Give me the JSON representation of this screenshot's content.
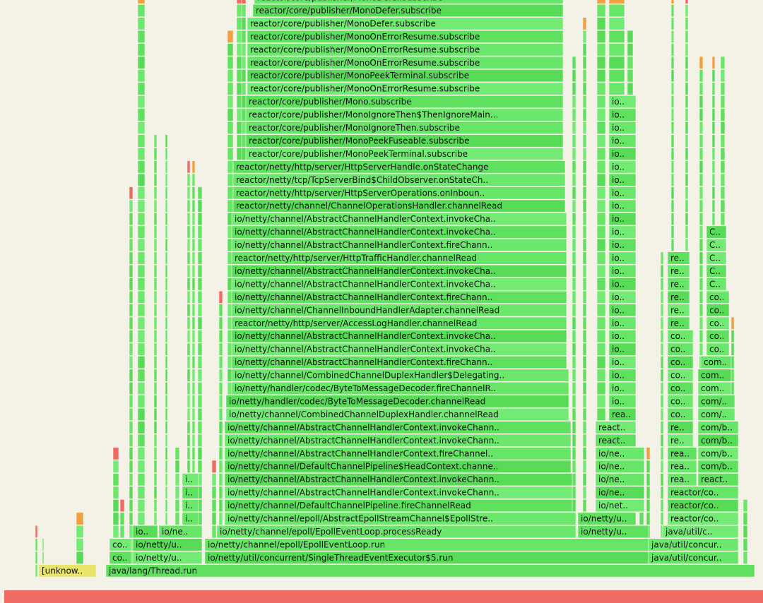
{
  "rows": [
    [
      "[unknow..",
      "java/lang/Thread.run"
    ],
    [
      "co..",
      "io/netty/u..",
      "io/netty/util/concurrent/SingleThreadEventExecutor$5.run",
      "java/util/concur.."
    ],
    [
      "co..",
      "io/netty/u..",
      "io/netty/channel/epoll/EpollEventLoop.run",
      "java/util/concur.."
    ],
    [
      "io..",
      "io/ne..",
      "io/netty/channel/epoll/EpollEventLoop.processReady",
      "io/netty/u..",
      "java/util/c.."
    ],
    [
      "i..",
      "io/netty/channel/epoll/AbstractEpollStreamChannel$EpollStre..",
      "io/netty/u..",
      "reactor/co.."
    ],
    [
      "i..",
      "io/netty/channel/DefaultChannelPipeline.fireChannelRead",
      "io/net..",
      "reactor/co.."
    ],
    [
      "i..",
      "io/netty/channel/AbstractChannelHandlerContext.invokeChann..",
      "io/ne..",
      "reactor/co.."
    ],
    [
      "i..",
      "io/netty/channel/AbstractChannelHandlerContext.invokeChann..",
      "io/ne..",
      "rea..",
      "react.."
    ],
    [
      "io/netty/channel/DefaultChannelPipeline$HeadContext.channe..",
      "io/ne..",
      "rea..",
      "com/b.."
    ],
    [
      "io/netty/channel/AbstractChannelHandlerContext.fireChannel..",
      "io/ne..",
      "rea..",
      "com/b.."
    ],
    [
      "io/netty/channel/AbstractChannelHandlerContext.invokeChann..",
      "react..",
      "re..",
      "com/b.."
    ],
    [
      "io/netty/channel/AbstractChannelHandlerContext.invokeChann..",
      "react..",
      "re..",
      "com/b.."
    ],
    [
      "io/netty/channel/CombinedChannelDuplexHandler.channelRead",
      "rea..",
      "co..",
      "com/.."
    ],
    [
      "io/netty/handler/codec/ByteToMessageDecoder.channelRead",
      "io..",
      "co..",
      "com/.."
    ],
    [
      "io/netty/handler/codec/ByteToMessageDecoder.fireChannelR..",
      "io..",
      "co..",
      "com.."
    ],
    [
      "io/netty/channel/CombinedChannelDuplexHandler$Delegating..",
      "io..",
      "co..",
      "com.."
    ],
    [
      "io/netty/channel/AbstractChannelHandlerContext.fireChann..",
      "io..",
      "co..",
      "com.."
    ],
    [
      "io/netty/channel/AbstractChannelHandlerContext.invokeCha..",
      "io..",
      "co..",
      "co.."
    ],
    [
      "io/netty/channel/AbstractChannelHandlerContext.invokeCha..",
      "io..",
      "co..",
      "co.."
    ],
    [
      "reactor/netty/http/server/AccessLogHandler.channelRead",
      "io..",
      "re..",
      "co.."
    ],
    [
      "io/netty/channel/ChannelInboundHandlerAdapter.channelRead",
      "io..",
      "re..",
      "co.."
    ],
    [
      "io/netty/channel/AbstractChannelHandlerContext.fireChann..",
      "io..",
      "re..",
      "co.."
    ],
    [
      "io/netty/channel/AbstractChannelHandlerContext.invokeCha..",
      "io..",
      "re..",
      "C.."
    ],
    [
      "io/netty/channel/AbstractChannelHandlerContext.invokeCha..",
      "io..",
      "re..",
      "C.."
    ],
    [
      "reactor/netty/http/server/HttpTrafficHandler.channelRead",
      "io..",
      "re..",
      "C.."
    ],
    [
      "io/netty/channel/AbstractChannelHandlerContext.fireChann..",
      "io..",
      "C.."
    ],
    [
      "io/netty/channel/AbstractChannelHandlerContext.invokeCha..",
      "io..",
      "C.."
    ],
    [
      "io/netty/channel/AbstractChannelHandlerContext.invokeCha..",
      "io.."
    ],
    [
      "reactor/netty/channel/ChannelOperationsHandler.channelRead",
      "io.."
    ],
    [
      "reactor/netty/http/server/HttpServerOperations.onInboun..",
      "io.."
    ],
    [
      "reactor/netty/tcp/TcpServerBind$ChildObserver.onStateCh..",
      "io.."
    ],
    [
      "reactor/netty/http/server/HttpServerHandle.onStateChange",
      "io.."
    ],
    [
      "reactor/core/publisher/MonoPeekTerminal.subscribe",
      "io.."
    ],
    [
      "reactor/core/publisher/MonoPeekFuseable.subscribe",
      "io.."
    ],
    [
      "reactor/core/publisher/MonoIgnoreThen.subscribe",
      "io.."
    ],
    [
      "reactor/core/publisher/MonoIgnoreThen$ThenIgnoreMain...",
      "io.."
    ],
    [
      "reactor/core/publisher/Mono.subscribe",
      "io.."
    ],
    [
      "reactor/core/publisher/MonoOnErrorResume.subscribe"
    ],
    [
      "reactor/core/publisher/MonoPeekTerminal.subscribe"
    ],
    [
      "reactor/core/publisher/MonoOnErrorResume.subscribe"
    ],
    [
      "reactor/core/publisher/MonoOnErrorResume.subscribe"
    ],
    [
      "reactor/core/publisher/MonoOnErrorResume.subscribe"
    ],
    [
      "reactor/core/publisher/MonoDefer.subscribe"
    ],
    [
      "reactor/core/publisher/MonoDefer.subscribe"
    ],
    [
      "reactor/core/publisher/MonoDefer.subscribe"
    ]
  ]
}
